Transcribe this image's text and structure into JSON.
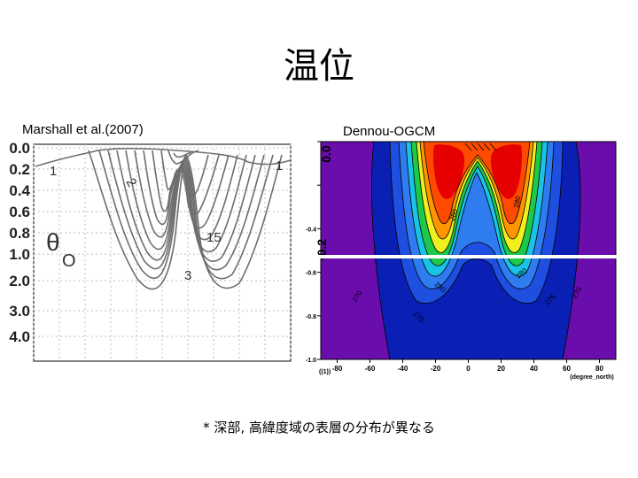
{
  "slide": {
    "title": "温位",
    "left_caption": "Marshall et al.(2007)",
    "right_caption": "Dennou-OGCM",
    "note": "* 深部, 高緯度域の表層の分布が異なる"
  },
  "chart_data": [
    {
      "type": "contour",
      "name_printed": "θO",
      "symbol_main": "θ",
      "symbol_sub": "O",
      "y_ticks": [
        "0.0",
        "0.2",
        "0.4",
        "0.6",
        "0.8",
        "1.0",
        "2.0",
        "3.0",
        "4.0"
      ],
      "contour_labels": [
        "1",
        "2",
        "15",
        "3",
        "1"
      ],
      "colors": {
        "line": "#6e6e6e",
        "grid": "#bdbdbd",
        "axis": "#000000"
      }
    },
    {
      "type": "contour",
      "x_ticks": [
        "-80",
        "-60",
        "-40",
        "-20",
        "0",
        "20",
        "40",
        "60",
        "80"
      ],
      "xlabel": "(degree_north)",
      "y_ticks": [
        "0.0",
        "-0.2",
        "-0.4",
        "-0.6",
        "-0.8",
        "-1.0"
      ],
      "y_tick_overlay": "-0.2",
      "ylabel": "((1))",
      "xlim": [
        -90,
        90
      ],
      "ylim": [
        -1.0,
        0.0
      ],
      "contour_labels": [
        "280",
        "280",
        "280",
        "275",
        "275",
        "270",
        "270",
        "280"
      ],
      "colors": {
        "purple": "#6a0dad",
        "deep_blue": "#0a1fb4",
        "blue": "#1e4fe0",
        "blue_mid": "#2f7bf0",
        "cyan": "#19c3e6",
        "green": "#1ec94a",
        "yellow": "#f0f01e",
        "orange": "#ff9600",
        "red_orange": "#ff4b00",
        "red": "#e60000",
        "white_line": "#ffffff"
      }
    }
  ]
}
